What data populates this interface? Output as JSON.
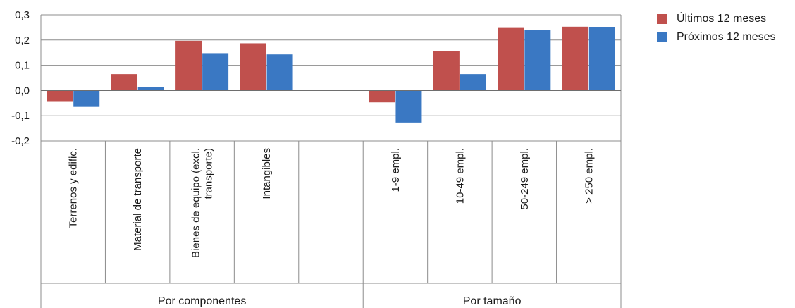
{
  "chart_data": {
    "type": "bar",
    "title": "",
    "xlabel": "",
    "ylabel": "",
    "ylim": [
      -0.2,
      0.3
    ],
    "yticks": [
      "0,3",
      "0,2",
      "0,1",
      "0,0",
      "-0,1",
      "-0,2"
    ],
    "ytick_values": [
      0.3,
      0.2,
      0.1,
      0.0,
      -0.1,
      -0.2
    ],
    "grid": true,
    "legend_position": "right",
    "categories": [
      "Terrenos y edific.",
      "Material de transporte",
      "Bienes de equipo (excl. transporte)",
      "Intangibles",
      "",
      "1-9 empl.",
      "10-49 empl.",
      "50-249 empl.",
      "> 250 empl."
    ],
    "category_label_lines": [
      [
        "Terrenos y edific."
      ],
      [
        "Material de transporte"
      ],
      [
        "Bienes de equipo (excl.",
        "transporte)"
      ],
      [
        "Intangibles"
      ],
      [],
      [
        "1-9 empl."
      ],
      [
        "10-49 empl."
      ],
      [
        "50-249 empl."
      ],
      [
        "> 250 empl."
      ]
    ],
    "groups": [
      {
        "label": "Por componentes",
        "span": [
          0,
          4
        ]
      },
      {
        "label": "Por tamaño",
        "span": [
          5,
          8
        ]
      }
    ],
    "series": [
      {
        "name": "Últimos 12 meses",
        "color": "#c0504d",
        "values": [
          -0.045,
          0.065,
          0.197,
          0.187,
          null,
          -0.047,
          0.155,
          0.248,
          0.253
        ]
      },
      {
        "name": "Próximos 12 meses",
        "color": "#3a78c3",
        "values": [
          -0.065,
          0.014,
          0.148,
          0.143,
          null,
          -0.127,
          0.065,
          0.24,
          0.252
        ]
      }
    ]
  }
}
